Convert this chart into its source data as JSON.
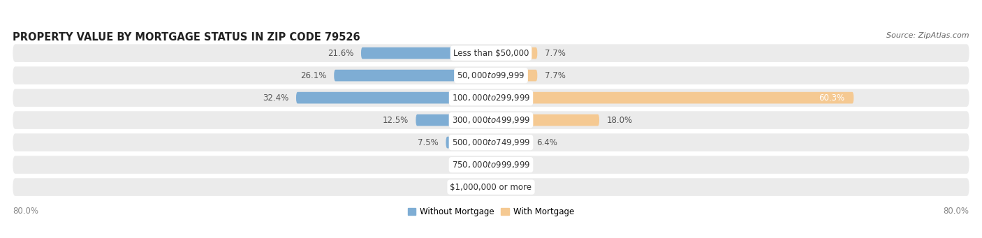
{
  "title": "PROPERTY VALUE BY MORTGAGE STATUS IN ZIP CODE 79526",
  "source": "Source: ZipAtlas.com",
  "categories": [
    "Less than $50,000",
    "$50,000 to $99,999",
    "$100,000 to $299,999",
    "$300,000 to $499,999",
    "$500,000 to $749,999",
    "$750,000 to $999,999",
    "$1,000,000 or more"
  ],
  "without_mortgage": [
    21.6,
    26.1,
    32.4,
    12.5,
    7.5,
    0.0,
    0.0
  ],
  "with_mortgage": [
    7.7,
    7.7,
    60.3,
    18.0,
    6.4,
    0.0,
    0.0
  ],
  "color_without": "#7eadd4",
  "color_with": "#f5c992",
  "row_bg_color": "#ebebeb",
  "row_bg_dark": "#e0e0e0",
  "max_value": 80.0,
  "legend_without": "Without Mortgage",
  "legend_with": "With Mortgage",
  "left_axis_label": "80.0%",
  "right_axis_label": "80.0%",
  "title_fontsize": 10.5,
  "source_fontsize": 8,
  "label_fontsize": 8.5,
  "cat_fontsize": 8.5,
  "value_color": "#555555",
  "cat_text_color": "#333333",
  "title_color": "#222222",
  "source_color": "#666666",
  "axis_label_color": "#888888"
}
